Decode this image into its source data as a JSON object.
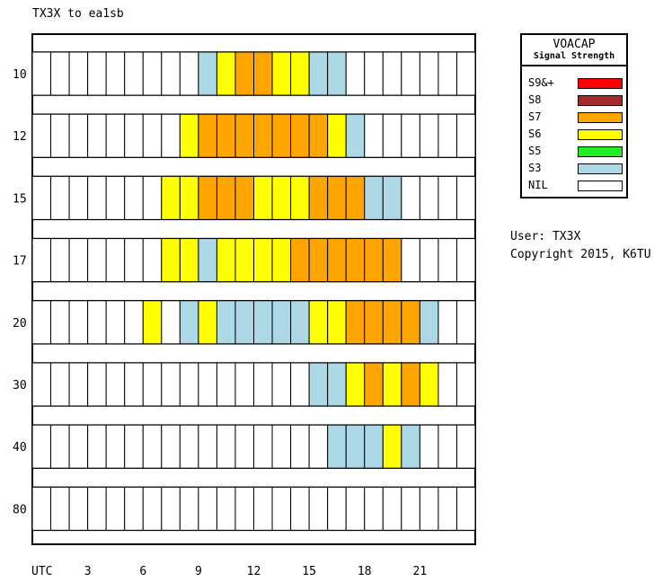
{
  "title": "TX3X to ea1sb",
  "user_text": "User: TX3X",
  "copyright_text": "Copyright 2015, K6TU",
  "legend": {
    "title": "VOACAP",
    "subtitle": "Signal Strength",
    "items": [
      {
        "label": "S9&+",
        "color": "#ff0000"
      },
      {
        "label": "S8",
        "color": "#a52a2a"
      },
      {
        "label": "S7",
        "color": "#ffa500"
      },
      {
        "label": "S6",
        "color": "#ffff00"
      },
      {
        "label": "S5",
        "color": "#22ee22"
      },
      {
        "label": "S3",
        "color": "#add8e6"
      },
      {
        "label": "NIL",
        "color": "#ffffff"
      }
    ]
  },
  "chart_data": {
    "type": "heatmap",
    "xlabel": "UTC",
    "x_ticks": [
      "3",
      "6",
      "9",
      "12",
      "15",
      "18",
      "21"
    ],
    "hours": [
      0,
      1,
      2,
      3,
      4,
      5,
      6,
      7,
      8,
      9,
      10,
      11,
      12,
      13,
      14,
      15,
      16,
      17,
      18,
      19,
      20,
      21,
      22,
      23
    ],
    "bands": [
      "10",
      "12",
      "15",
      "17",
      "20",
      "30",
      "40",
      "80"
    ],
    "grid": {
      "10": [
        "NIL",
        "NIL",
        "NIL",
        "NIL",
        "NIL",
        "NIL",
        "NIL",
        "NIL",
        "NIL",
        "S3",
        "S6",
        "S7",
        "S7",
        "S6",
        "S6",
        "S3",
        "S3",
        "NIL",
        "NIL",
        "NIL",
        "NIL",
        "NIL",
        "NIL",
        "NIL"
      ],
      "12": [
        "NIL",
        "NIL",
        "NIL",
        "NIL",
        "NIL",
        "NIL",
        "NIL",
        "NIL",
        "S6",
        "S7",
        "S7",
        "S7",
        "S7",
        "S7",
        "S7",
        "S7",
        "S6",
        "S3",
        "NIL",
        "NIL",
        "NIL",
        "NIL",
        "NIL",
        "NIL"
      ],
      "15": [
        "NIL",
        "NIL",
        "NIL",
        "NIL",
        "NIL",
        "NIL",
        "NIL",
        "S6",
        "S6",
        "S7",
        "S7",
        "S7",
        "S6",
        "S6",
        "S6",
        "S7",
        "S7",
        "S7",
        "S3",
        "S3",
        "NIL",
        "NIL",
        "NIL",
        "NIL"
      ],
      "17": [
        "NIL",
        "NIL",
        "NIL",
        "NIL",
        "NIL",
        "NIL",
        "NIL",
        "S6",
        "S6",
        "S3",
        "S6",
        "S6",
        "S6",
        "S6",
        "S7",
        "S7",
        "S7",
        "S7",
        "S7",
        "S7",
        "NIL",
        "NIL",
        "NIL",
        "NIL"
      ],
      "20": [
        "NIL",
        "NIL",
        "NIL",
        "NIL",
        "NIL",
        "NIL",
        "S6",
        "NIL",
        "S3",
        "S6",
        "S3",
        "S3",
        "S3",
        "S3",
        "S3",
        "S6",
        "S6",
        "S7",
        "S7",
        "S7",
        "S7",
        "S3",
        "NIL",
        "NIL"
      ],
      "30": [
        "NIL",
        "NIL",
        "NIL",
        "NIL",
        "NIL",
        "NIL",
        "NIL",
        "NIL",
        "NIL",
        "NIL",
        "NIL",
        "NIL",
        "NIL",
        "NIL",
        "NIL",
        "S3",
        "S3",
        "S6",
        "S7",
        "S6",
        "S7",
        "S6",
        "NIL",
        "NIL"
      ],
      "40": [
        "NIL",
        "NIL",
        "NIL",
        "NIL",
        "NIL",
        "NIL",
        "NIL",
        "NIL",
        "NIL",
        "NIL",
        "NIL",
        "NIL",
        "NIL",
        "NIL",
        "NIL",
        "NIL",
        "S3",
        "S3",
        "S3",
        "S6",
        "S3",
        "NIL",
        "NIL",
        "NIL"
      ],
      "80": [
        "NIL",
        "NIL",
        "NIL",
        "NIL",
        "NIL",
        "NIL",
        "NIL",
        "NIL",
        "NIL",
        "NIL",
        "NIL",
        "NIL",
        "NIL",
        "NIL",
        "NIL",
        "NIL",
        "NIL",
        "NIL",
        "NIL",
        "NIL",
        "NIL",
        "NIL",
        "NIL",
        "NIL"
      ]
    }
  }
}
